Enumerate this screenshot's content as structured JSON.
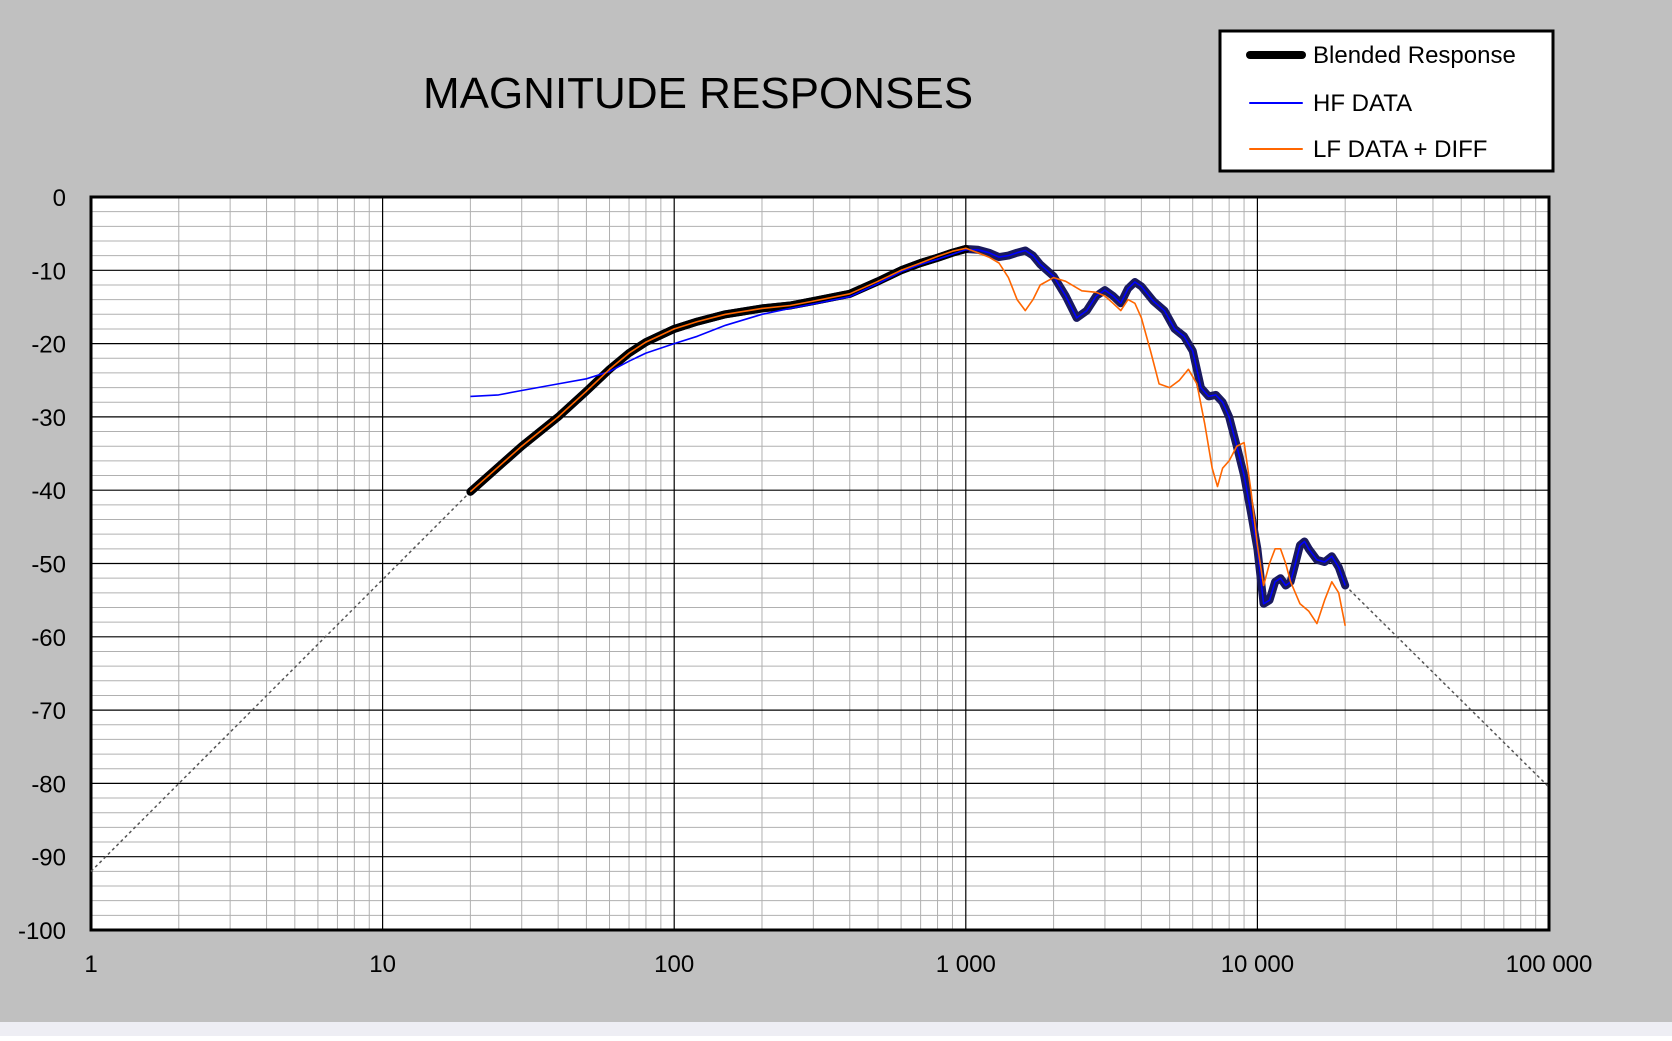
{
  "colors": {
    "background": "#c0c0c0",
    "plot_area": "#ffffff",
    "blended": "#000000",
    "blended_highlight": "#1a1a5e",
    "hf": "#0000ff",
    "lf": "#ff6600",
    "extrapolation": "#555555"
  },
  "chart_data": {
    "type": "line",
    "title": "MAGNITUDE RESPONSES",
    "xlabel": "",
    "ylabel": "",
    "x_scale": "log",
    "xlim": [
      1,
      100000
    ],
    "ylim": [
      -100,
      0
    ],
    "x_ticks": [
      1,
      10,
      100,
      1000,
      10000,
      100000
    ],
    "x_tick_labels": [
      "1",
      "10",
      "100",
      "1 000",
      "10 000",
      "100 000"
    ],
    "y_ticks": [
      0,
      -10,
      -20,
      -30,
      -40,
      -50,
      -60,
      -70,
      -80,
      -90,
      -100
    ],
    "y_tick_labels": [
      "0",
      "-10",
      "-20",
      "-30",
      "-40",
      "-50",
      "-60",
      "-70",
      "-80",
      "-90",
      "-100"
    ],
    "grid": true,
    "legend_position": "top-right",
    "series": [
      {
        "name": "Blended Response",
        "color": "#000000",
        "points": [
          [
            20,
            -40.2
          ],
          [
            30,
            -34
          ],
          [
            40,
            -30
          ],
          [
            50,
            -26.5
          ],
          [
            60,
            -23.5
          ],
          [
            70,
            -21.3
          ],
          [
            80,
            -19.8
          ],
          [
            100,
            -18
          ],
          [
            120,
            -17
          ],
          [
            150,
            -16
          ],
          [
            200,
            -15.2
          ],
          [
            250,
            -14.8
          ],
          [
            300,
            -14.2
          ],
          [
            400,
            -13.2
          ],
          [
            500,
            -11.5
          ],
          [
            600,
            -10
          ],
          [
            700,
            -9
          ],
          [
            800,
            -8.3
          ],
          [
            900,
            -7.6
          ],
          [
            1000,
            -7.1
          ],
          [
            1100,
            -7.2
          ],
          [
            1200,
            -7.6
          ],
          [
            1300,
            -8.2
          ],
          [
            1400,
            -8
          ],
          [
            1500,
            -7.6
          ],
          [
            1600,
            -7.3
          ],
          [
            1700,
            -8
          ],
          [
            1800,
            -9.2
          ],
          [
            2000,
            -10.8
          ],
          [
            2200,
            -13.5
          ],
          [
            2400,
            -16.5
          ],
          [
            2600,
            -15.5
          ],
          [
            2800,
            -13.5
          ],
          [
            3000,
            -12.7
          ],
          [
            3200,
            -13.5
          ],
          [
            3400,
            -14.5
          ],
          [
            3600,
            -12.5
          ],
          [
            3800,
            -11.6
          ],
          [
            4000,
            -12.2
          ],
          [
            4400,
            -14.2
          ],
          [
            4800,
            -15.5
          ],
          [
            5200,
            -18
          ],
          [
            5600,
            -19
          ],
          [
            6000,
            -21
          ],
          [
            6400,
            -26
          ],
          [
            6800,
            -27.2
          ],
          [
            7200,
            -27
          ],
          [
            7600,
            -28
          ],
          [
            8000,
            -30
          ],
          [
            8500,
            -34
          ],
          [
            9000,
            -38
          ],
          [
            9500,
            -43
          ],
          [
            10000,
            -48
          ],
          [
            10500,
            -55.5
          ],
          [
            11000,
            -55
          ],
          [
            11500,
            -52.5
          ],
          [
            12000,
            -52
          ],
          [
            12500,
            -53
          ],
          [
            13000,
            -52.5
          ],
          [
            13500,
            -50
          ],
          [
            14000,
            -47.5
          ],
          [
            14500,
            -47
          ],
          [
            15000,
            -48
          ],
          [
            16000,
            -49.5
          ],
          [
            17000,
            -49.8
          ],
          [
            18000,
            -49
          ],
          [
            19000,
            -50.5
          ],
          [
            20000,
            -53
          ]
        ]
      },
      {
        "name": "HF DATA",
        "color": "#0000ff",
        "points": [
          [
            20,
            -27.2
          ],
          [
            25,
            -27
          ],
          [
            30,
            -26.4
          ],
          [
            40,
            -25.5
          ],
          [
            50,
            -24.8
          ],
          [
            60,
            -23.8
          ],
          [
            70,
            -22.4
          ],
          [
            80,
            -21.3
          ],
          [
            100,
            -20
          ],
          [
            120,
            -19
          ],
          [
            150,
            -17.5
          ],
          [
            200,
            -16
          ],
          [
            250,
            -15.2
          ],
          [
            300,
            -14.6
          ],
          [
            400,
            -13.6
          ],
          [
            500,
            -11.8
          ],
          [
            600,
            -10.2
          ],
          [
            700,
            -9.2
          ],
          [
            800,
            -8.5
          ],
          [
            900,
            -7.8
          ],
          [
            1000,
            -7.2
          ],
          [
            1100,
            -7.2
          ],
          [
            1200,
            -7.6
          ],
          [
            1300,
            -8.2
          ],
          [
            1400,
            -8
          ],
          [
            1500,
            -7.6
          ],
          [
            1600,
            -7.3
          ],
          [
            1700,
            -8
          ],
          [
            1800,
            -9.2
          ],
          [
            2000,
            -10.8
          ],
          [
            2200,
            -13.5
          ],
          [
            2400,
            -16.5
          ],
          [
            2600,
            -15.5
          ],
          [
            2800,
            -13.5
          ],
          [
            3000,
            -12.7
          ],
          [
            3200,
            -13.5
          ],
          [
            3400,
            -14.5
          ],
          [
            3600,
            -12.5
          ],
          [
            3800,
            -11.6
          ],
          [
            4000,
            -12.2
          ],
          [
            4400,
            -14.2
          ],
          [
            4800,
            -15.5
          ],
          [
            5200,
            -18
          ],
          [
            5600,
            -19
          ],
          [
            6000,
            -21
          ],
          [
            6400,
            -26
          ],
          [
            6800,
            -27.2
          ],
          [
            7200,
            -27
          ],
          [
            7600,
            -28
          ],
          [
            8000,
            -30
          ],
          [
            8500,
            -34
          ],
          [
            9000,
            -38
          ],
          [
            9500,
            -43
          ],
          [
            10000,
            -48
          ],
          [
            10500,
            -55.5
          ],
          [
            11000,
            -55
          ],
          [
            11500,
            -52.5
          ],
          [
            12000,
            -52
          ],
          [
            12500,
            -53
          ],
          [
            13000,
            -52.5
          ],
          [
            13500,
            -50
          ],
          [
            14000,
            -47.5
          ],
          [
            14500,
            -47
          ],
          [
            15000,
            -48
          ],
          [
            16000,
            -49.5
          ],
          [
            17000,
            -49.8
          ],
          [
            18000,
            -49
          ],
          [
            19000,
            -50.5
          ],
          [
            20000,
            -53
          ]
        ]
      },
      {
        "name": "LF DATA + DIFF",
        "color": "#ff6600",
        "points": [
          [
            20,
            -40.2
          ],
          [
            30,
            -34
          ],
          [
            40,
            -30
          ],
          [
            50,
            -26.5
          ],
          [
            60,
            -23.5
          ],
          [
            70,
            -21.3
          ],
          [
            80,
            -19.8
          ],
          [
            100,
            -18
          ],
          [
            120,
            -17
          ],
          [
            150,
            -16
          ],
          [
            200,
            -15.2
          ],
          [
            250,
            -14.8
          ],
          [
            300,
            -14.2
          ],
          [
            400,
            -13.2
          ],
          [
            500,
            -11.5
          ],
          [
            600,
            -10
          ],
          [
            700,
            -9
          ],
          [
            800,
            -8.1
          ],
          [
            900,
            -7.4
          ],
          [
            1000,
            -7
          ],
          [
            1100,
            -7.6
          ],
          [
            1200,
            -8.2
          ],
          [
            1300,
            -9
          ],
          [
            1400,
            -11
          ],
          [
            1500,
            -14
          ],
          [
            1600,
            -15.5
          ],
          [
            1700,
            -14
          ],
          [
            1800,
            -12
          ],
          [
            2000,
            -11
          ],
          [
            2200,
            -11.5
          ],
          [
            2500,
            -12.8
          ],
          [
            2800,
            -13
          ],
          [
            3000,
            -13.5
          ],
          [
            3200,
            -14.5
          ],
          [
            3400,
            -15.5
          ],
          [
            3600,
            -14
          ],
          [
            3800,
            -14.5
          ],
          [
            4000,
            -16.5
          ],
          [
            4300,
            -21
          ],
          [
            4600,
            -25.5
          ],
          [
            5000,
            -26
          ],
          [
            5400,
            -25
          ],
          [
            5800,
            -23.5
          ],
          [
            6200,
            -25.5
          ],
          [
            6600,
            -31
          ],
          [
            7000,
            -37
          ],
          [
            7300,
            -39.5
          ],
          [
            7600,
            -37
          ],
          [
            8000,
            -36
          ],
          [
            8500,
            -34
          ],
          [
            9000,
            -33.5
          ],
          [
            9500,
            -40
          ],
          [
            10000,
            -47.5
          ],
          [
            10500,
            -53
          ],
          [
            11000,
            -50
          ],
          [
            11500,
            -48
          ],
          [
            12000,
            -48
          ],
          [
            12500,
            -50
          ],
          [
            13000,
            -52.5
          ],
          [
            14000,
            -55.5
          ],
          [
            15000,
            -56.5
          ],
          [
            16000,
            -58.2
          ],
          [
            17000,
            -55
          ],
          [
            18000,
            -52.5
          ],
          [
            19000,
            -54
          ],
          [
            20000,
            -58.5
          ]
        ]
      },
      {
        "name": "",
        "color": "#555555",
        "role": "extrapolation",
        "points": [
          [
            1,
            -92
          ],
          [
            20,
            -40.2
          ]
        ]
      },
      {
        "name": "",
        "color": "#555555",
        "role": "extrapolation",
        "points": [
          [
            20000,
            -53
          ],
          [
            100000,
            -80.5
          ]
        ]
      }
    ]
  }
}
